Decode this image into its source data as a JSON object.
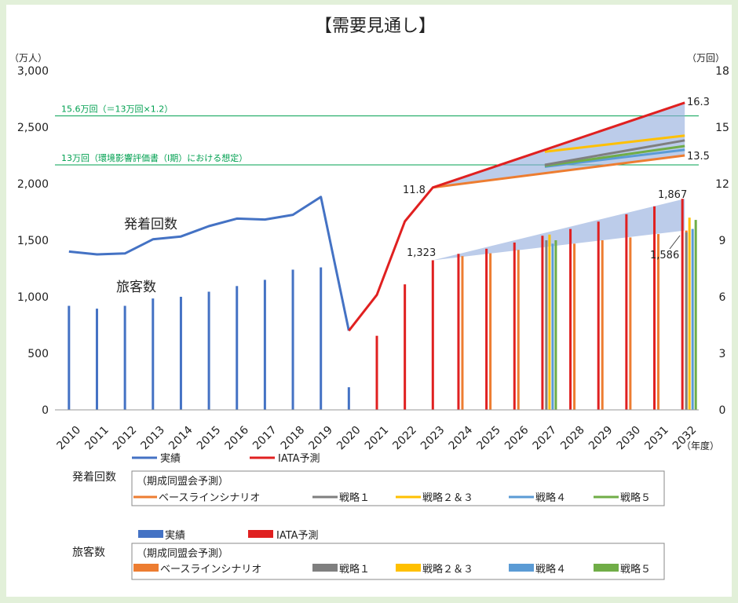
{
  "title": "【需要見通し】",
  "left_axis_unit": "（万人）",
  "right_axis_unit": "（万回）",
  "x_axis_unit": "（年度）",
  "colors": {
    "actual": "#4472c4",
    "iata": "#e02020",
    "baseline": "#ed7d31",
    "strategy1": "#7f7f7f",
    "strategy23": "#ffc000",
    "strategy4": "#5b9bd5",
    "strategy5": "#70ad47",
    "capacity_line": "#00a050",
    "range_fill": "#8faadc"
  },
  "capacity_lines": [
    {
      "label": "15.6万回（＝13万回×1.2）",
      "value": 15.6
    },
    {
      "label": "13万回（環境影響評価書（Ⅰ期）における想定）",
      "value": 13.0
    }
  ],
  "series_labels": {
    "movements": "発着回数",
    "passengers": "旅客数"
  },
  "annotations": {
    "mov_2023": "11.8",
    "mov_2032_high": "16.3",
    "mov_2032_low": "13.5",
    "pax_2023": "1,323",
    "pax_2032_high": "1,867",
    "pax_2032_low": "1,586"
  },
  "legend": {
    "line_actual": "実績",
    "line_iata": "IATA予測",
    "movements_heading": "発着回数",
    "passengers_heading": "旅客数",
    "group_title": "（期成同盟会予測）",
    "baseline": "ベースラインシナリオ",
    "strategy1": "戦略１",
    "strategy23": "戦略２＆３",
    "strategy4": "戦略４",
    "strategy5": "戦略５",
    "bar_actual": "実績",
    "bar_iata": "IATA予測"
  },
  "chart_data": {
    "type": "bar",
    "categories": [
      "2010",
      "2011",
      "2012",
      "2013",
      "2014",
      "2015",
      "2016",
      "2017",
      "2018",
      "2019",
      "2020",
      "2021",
      "2022",
      "2023",
      "2024",
      "2025",
      "2026",
      "2027",
      "2028",
      "2029",
      "2030",
      "2031",
      "2032"
    ],
    "left_axis": {
      "label": "（万人）",
      "ylim": [
        0,
        3000
      ],
      "ticks": [
        "0",
        "500",
        "1,000",
        "1,500",
        "2,000",
        "2,500",
        "3,000"
      ]
    },
    "right_axis": {
      "label": "（万回）",
      "ylim": [
        0,
        18
      ],
      "ticks": [
        "0",
        "3",
        "6",
        "9",
        "12",
        "15",
        "18"
      ]
    },
    "passengers": {
      "actual": {
        "years": [
          "2010",
          "2011",
          "2012",
          "2013",
          "2014",
          "2015",
          "2016",
          "2017",
          "2018",
          "2019",
          "2020"
        ],
        "values": [
          920,
          895,
          920,
          985,
          1000,
          1045,
          1095,
          1150,
          1240,
          1260,
          200
        ]
      },
      "iata": {
        "years": [
          "2021",
          "2022",
          "2023",
          "2024",
          "2025",
          "2026",
          "2027",
          "2028",
          "2029",
          "2030",
          "2031",
          "2032"
        ],
        "values": [
          655,
          1110,
          1323,
          1380,
          1425,
          1480,
          1540,
          1600,
          1665,
          1730,
          1800,
          1867
        ]
      },
      "baseline": {
        "years": [
          "2024",
          "2025",
          "2026",
          "2027",
          "2028",
          "2029",
          "2030",
          "2031",
          "2032"
        ],
        "values": [
          1360,
          1385,
          1415,
          1445,
          1470,
          1500,
          1525,
          1555,
          1586
        ]
      },
      "strategy1": {
        "years": [
          "2027",
          "2032"
        ],
        "values": [
          1500,
          1570
        ]
      },
      "strategy23": {
        "years": [
          "2027",
          "2032"
        ],
        "values": [
          1550,
          1700
        ]
      },
      "strategy4": {
        "years": [
          "2027",
          "2032"
        ],
        "values": [
          1470,
          1600
        ]
      },
      "strategy5": {
        "years": [
          "2027",
          "2032"
        ],
        "values": [
          1500,
          1680
        ]
      },
      "range_upper": {
        "years": [
          "2023",
          "2032"
        ],
        "values": [
          1323,
          1867
        ]
      },
      "range_lower": {
        "years": [
          "2023",
          "2032"
        ],
        "values": [
          1323,
          1586
        ]
      }
    },
    "movements": {
      "actual": {
        "years": [
          "2010",
          "2011",
          "2012",
          "2013",
          "2014",
          "2015",
          "2016",
          "2017",
          "2018",
          "2019",
          "2020"
        ],
        "values": [
          8.4,
          8.25,
          8.3,
          9.05,
          9.2,
          9.75,
          10.15,
          10.1,
          10.35,
          11.3,
          4.2
        ]
      },
      "iata": {
        "years": [
          "2020",
          "2021",
          "2022",
          "2023",
          "2032"
        ],
        "values": [
          4.2,
          6.1,
          10.0,
          11.8,
          16.3
        ]
      },
      "baseline": {
        "years": [
          "2023",
          "2032"
        ],
        "values": [
          11.8,
          13.5
        ]
      },
      "strategy1": {
        "years": [
          "2027",
          "2032"
        ],
        "values": [
          13.0,
          14.3
        ]
      },
      "strategy23": {
        "years": [
          "2027",
          "2032"
        ],
        "values": [
          13.7,
          14.55
        ]
      },
      "strategy4": {
        "years": [
          "2027",
          "2032"
        ],
        "values": [
          12.9,
          13.8
        ]
      },
      "strategy5": {
        "years": [
          "2027",
          "2032"
        ],
        "values": [
          12.95,
          14.0
        ]
      }
    }
  }
}
